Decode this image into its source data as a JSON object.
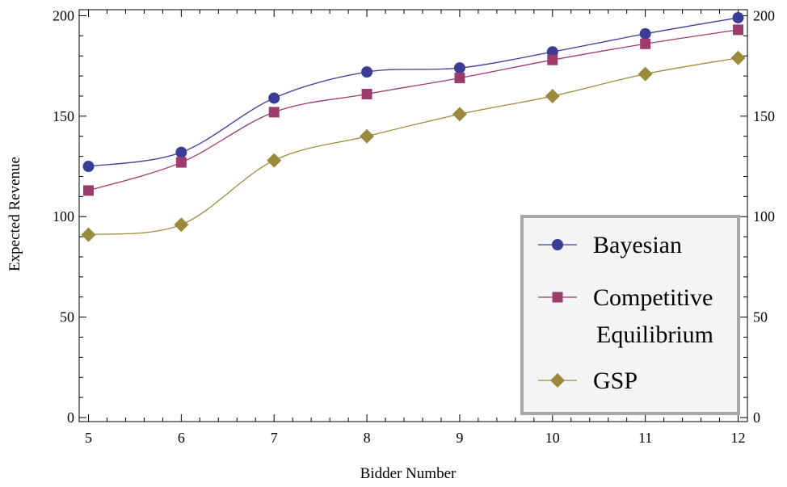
{
  "chart_data": {
    "type": "line",
    "title": "",
    "xlabel": "Bidder Number",
    "ylabel": "Expected Revenue",
    "x": [
      5,
      6,
      7,
      8,
      9,
      10,
      11,
      12
    ],
    "xlim": [
      4.9,
      12.1
    ],
    "ylim": [
      -2,
      203
    ],
    "xticks": [
      5,
      6,
      7,
      8,
      9,
      10,
      11,
      12
    ],
    "yticks": [
      0,
      50,
      100,
      150,
      200
    ],
    "y_axis_right_mirrored": true,
    "grid": false,
    "legend_position": "bottom-right",
    "series": [
      {
        "name": "Bayesian",
        "color": "#3b3c96",
        "marker": "circle",
        "values": [
          125,
          132,
          159,
          172,
          174,
          182,
          191,
          199
        ]
      },
      {
        "name": "Competitive Equilibrium",
        "label_lines": [
          "Competitive",
          "Equilibrium"
        ],
        "color": "#9c3c6c",
        "marker": "square",
        "values": [
          113,
          127,
          152,
          161,
          169,
          178,
          186,
          193
        ]
      },
      {
        "name": "GSP",
        "color": "#9a8b3c",
        "marker": "diamond",
        "values": [
          91,
          96,
          128,
          140,
          151,
          160,
          171,
          179
        ]
      }
    ]
  }
}
